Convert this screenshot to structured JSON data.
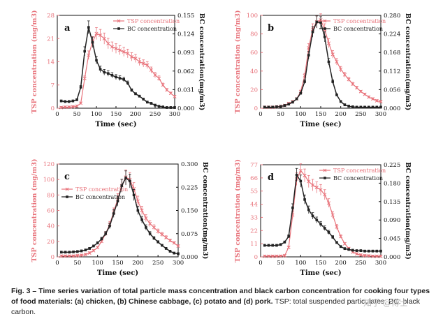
{
  "caption": {
    "bold": "Fig. 3 – Time series variation of total particle mass concentration and black carbon concentration for cooking four types of food materials: (a) chicken, (b) Chinese cabbage, (c) potato and (d) pork.",
    "rest": " TSP: total suspended particulates; BC: black carbon."
  },
  "watermark": "知乎 @博士",
  "colors": {
    "tsp": "#e8737b",
    "bc": "#222222"
  },
  "chart_data": [
    {
      "type": "line",
      "panel_label": "a",
      "xlabel": "Time (sec)",
      "ylabel": "TSP concentration (mg/m3)",
      "y2label": "BC concentration(mg/m3)",
      "xlim": [
        0,
        300
      ],
      "ylim": [
        0,
        28
      ],
      "y2lim": [
        0,
        0.155
      ],
      "xticks": [
        "0",
        "50",
        "100",
        "150",
        "200",
        "250",
        "300"
      ],
      "yticks": [
        "0",
        "7",
        "14",
        "21",
        "28"
      ],
      "y2ticks": [
        "0.000",
        "0.031",
        "0.062",
        "0.093",
        "0.124",
        "0.155"
      ],
      "legend": "top-right",
      "series": [
        {
          "name": "TSP concentration",
          "axis": "left",
          "x": [
            10,
            20,
            30,
            40,
            50,
            60,
            70,
            80,
            90,
            100,
            110,
            120,
            130,
            140,
            150,
            160,
            170,
            180,
            190,
            200,
            210,
            220,
            230,
            240,
            250,
            260,
            270,
            280,
            290,
            300
          ],
          "y": [
            0.2,
            0.3,
            0.3,
            0.4,
            0.6,
            1.5,
            9,
            16,
            20,
            22.5,
            22,
            21,
            19.5,
            18.5,
            18,
            17.5,
            17,
            16.5,
            15.5,
            15,
            14,
            13.5,
            13,
            11.5,
            10,
            9,
            7,
            5.5,
            4.5,
            3.5
          ]
        },
        {
          "name": "BC concentration",
          "axis": "right",
          "x": [
            10,
            20,
            30,
            40,
            50,
            60,
            70,
            80,
            90,
            100,
            110,
            120,
            130,
            140,
            150,
            160,
            170,
            180,
            190,
            200,
            210,
            220,
            230,
            240,
            250,
            260,
            270,
            280,
            290,
            300
          ],
          "y": [
            0.012,
            0.011,
            0.011,
            0.012,
            0.014,
            0.035,
            0.095,
            0.135,
            0.11,
            0.08,
            0.065,
            0.06,
            0.058,
            0.055,
            0.052,
            0.05,
            0.048,
            0.042,
            0.03,
            0.024,
            0.02,
            0.015,
            0.01,
            0.008,
            0.005,
            0.003,
            0.002,
            0.001,
            0.001,
            0.001
          ]
        }
      ]
    },
    {
      "type": "line",
      "panel_label": "b",
      "xlabel": "Time (sec)",
      "ylabel": "TSP concentration (mg/m3)",
      "y2label": "BC concentration(mg/m3)",
      "xlim": [
        0,
        300
      ],
      "ylim": [
        0,
        100
      ],
      "y2lim": [
        0,
        0.28
      ],
      "xticks": [
        "0",
        "50",
        "100",
        "150",
        "200",
        "250",
        "300"
      ],
      "yticks": [
        "0",
        "20",
        "40",
        "60",
        "80",
        "100"
      ],
      "y2ticks": [
        "0.000",
        "0.056",
        "0.112",
        "0.168",
        "0.224",
        "0.280"
      ],
      "legend": "top-right",
      "series": [
        {
          "name": "TSP concentration",
          "axis": "left",
          "x": [
            10,
            20,
            30,
            40,
            50,
            60,
            70,
            80,
            90,
            100,
            110,
            120,
            130,
            140,
            150,
            160,
            170,
            180,
            190,
            200,
            210,
            220,
            230,
            240,
            250,
            260,
            270,
            280,
            290,
            300
          ],
          "y": [
            1,
            1,
            1,
            1.5,
            2,
            3,
            5,
            7,
            10,
            18,
            35,
            65,
            85,
            93,
            95,
            85,
            70,
            58,
            50,
            42,
            36,
            31,
            26,
            22,
            18,
            15,
            12,
            10,
            8,
            7
          ]
        },
        {
          "name": "BC concentration",
          "axis": "right",
          "x": [
            10,
            20,
            30,
            40,
            50,
            60,
            70,
            80,
            90,
            100,
            110,
            120,
            130,
            140,
            150,
            160,
            170,
            180,
            190,
            200,
            210,
            220,
            230,
            240,
            250,
            260,
            270,
            280,
            290,
            300
          ],
          "y": [
            0.003,
            0.003,
            0.003,
            0.004,
            0.005,
            0.008,
            0.012,
            0.018,
            0.028,
            0.045,
            0.08,
            0.16,
            0.23,
            0.26,
            0.258,
            0.215,
            0.14,
            0.08,
            0.04,
            0.02,
            0.01,
            0.006,
            0.004,
            0.003,
            0.003,
            0.003,
            0.003,
            0.003,
            0.003,
            0.003
          ]
        }
      ]
    },
    {
      "type": "line",
      "panel_label": "c",
      "xlabel": "Time (sec)",
      "ylabel": "TSP concentration (mg/m3)",
      "y2label": "BC concentration(mg/m3)",
      "xlim": [
        0,
        300
      ],
      "ylim": [
        0,
        120
      ],
      "y2lim": [
        0,
        0.3
      ],
      "xticks": [
        "0",
        "50",
        "100",
        "150",
        "200",
        "250",
        "300"
      ],
      "yticks": [
        "0",
        "20",
        "40",
        "60",
        "80",
        "100",
        "120"
      ],
      "y2ticks": [
        "0.000",
        "0.075",
        "0.150",
        "0.225",
        "0.300"
      ],
      "legend": "top-left",
      "series": [
        {
          "name": "TSP concentration",
          "axis": "left",
          "x": [
            10,
            20,
            30,
            40,
            50,
            60,
            70,
            80,
            90,
            100,
            110,
            120,
            130,
            140,
            150,
            160,
            170,
            180,
            190,
            200,
            210,
            220,
            230,
            240,
            250,
            260,
            270,
            280,
            290,
            300
          ],
          "y": [
            1,
            1,
            1,
            1,
            1.5,
            2,
            3,
            5,
            8,
            12,
            20,
            30,
            42,
            58,
            75,
            92,
            103,
            100,
            88,
            72,
            60,
            50,
            43,
            38,
            33,
            29,
            25,
            21,
            18,
            14
          ]
        },
        {
          "name": "BC concentration",
          "axis": "right",
          "x": [
            10,
            20,
            30,
            40,
            50,
            60,
            70,
            80,
            90,
            100,
            110,
            120,
            130,
            140,
            150,
            160,
            170,
            180,
            190,
            200,
            210,
            220,
            230,
            240,
            250,
            260,
            270,
            280,
            290,
            300
          ],
          "y": [
            0.015,
            0.015,
            0.015,
            0.016,
            0.017,
            0.019,
            0.022,
            0.027,
            0.035,
            0.045,
            0.058,
            0.075,
            0.1,
            0.14,
            0.18,
            0.23,
            0.255,
            0.245,
            0.2,
            0.15,
            0.12,
            0.095,
            0.075,
            0.06,
            0.048,
            0.037,
            0.027,
            0.018,
            0.012,
            0.01
          ]
        }
      ]
    },
    {
      "type": "line",
      "panel_label": "d",
      "xlabel": "Time (sec)",
      "ylabel": "TSP concentration (mg/m3)",
      "y2label": "BC concentration(mg/m3)",
      "xlim": [
        0,
        300
      ],
      "ylim": [
        0,
        77
      ],
      "y2lim": [
        0,
        0.225
      ],
      "xticks": [
        "0",
        "50",
        "100",
        "150",
        "200",
        "250",
        "300"
      ],
      "yticks": [
        "0",
        "11",
        "22",
        "33",
        "44",
        "55",
        "66",
        "77"
      ],
      "y2ticks": [
        "0.000",
        "0.045",
        "0.090",
        "0.135",
        "0.180",
        "0.225"
      ],
      "legend": "top-right",
      "series": [
        {
          "name": "TSP concentration",
          "axis": "left",
          "x": [
            10,
            20,
            30,
            40,
            50,
            60,
            70,
            80,
            90,
            100,
            110,
            120,
            130,
            140,
            150,
            160,
            170,
            180,
            190,
            200,
            210,
            220,
            230,
            240,
            250,
            260,
            270,
            280,
            290,
            300
          ],
          "y": [
            0.5,
            0.5,
            0.5,
            0.5,
            0.6,
            1,
            8,
            35,
            65,
            72,
            68,
            63,
            60,
            58,
            56,
            52,
            45,
            35,
            25,
            17,
            11,
            7,
            4,
            2.5,
            1.5,
            1,
            0.8,
            0.5,
            0.5,
            0.5
          ]
        },
        {
          "name": "BC concentration",
          "axis": "right",
          "x": [
            10,
            20,
            30,
            40,
            50,
            60,
            70,
            80,
            90,
            100,
            110,
            120,
            130,
            140,
            150,
            160,
            170,
            180,
            190,
            200,
            210,
            220,
            230,
            240,
            250,
            260,
            270,
            280,
            290,
            300
          ],
          "y": [
            0.028,
            0.028,
            0.028,
            0.028,
            0.03,
            0.036,
            0.05,
            0.12,
            0.2,
            0.185,
            0.14,
            0.115,
            0.1,
            0.09,
            0.08,
            0.07,
            0.06,
            0.048,
            0.035,
            0.025,
            0.02,
            0.018,
            0.016,
            0.015,
            0.015,
            0.014,
            0.014,
            0.014,
            0.014,
            0.014
          ]
        }
      ]
    }
  ]
}
